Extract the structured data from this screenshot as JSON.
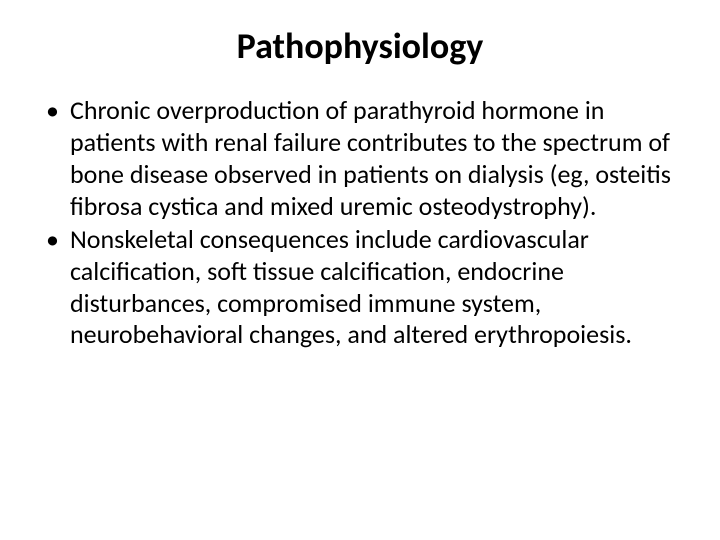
{
  "title": "Pathophysiology",
  "title_fontsize": 36,
  "title_weight": 700,
  "title_align": "center",
  "background_color": "#ffffff",
  "text_color": "#000000",
  "font_family": "Calibri, 'Segoe UI', Arial, sans-serif",
  "bullets": [
    "Chronic overproduction of parathyroid hormone in patients with renal failure contributes to the spectrum of bone disease observed in patients on dialysis (eg, osteitis fibrosa cystica and mixed uremic osteodystrophy).",
    " Nonskeletal consequences include cardiovascular calcification, soft tissue calcification, endocrine disturbances, compromised immune system, neurobehavioral changes, and altered erythropoiesis."
  ],
  "bullet_fontsize": 26,
  "bullet_line_height": 1.22,
  "bullet_marker": "•",
  "slide_width": 720,
  "slide_height": 540
}
